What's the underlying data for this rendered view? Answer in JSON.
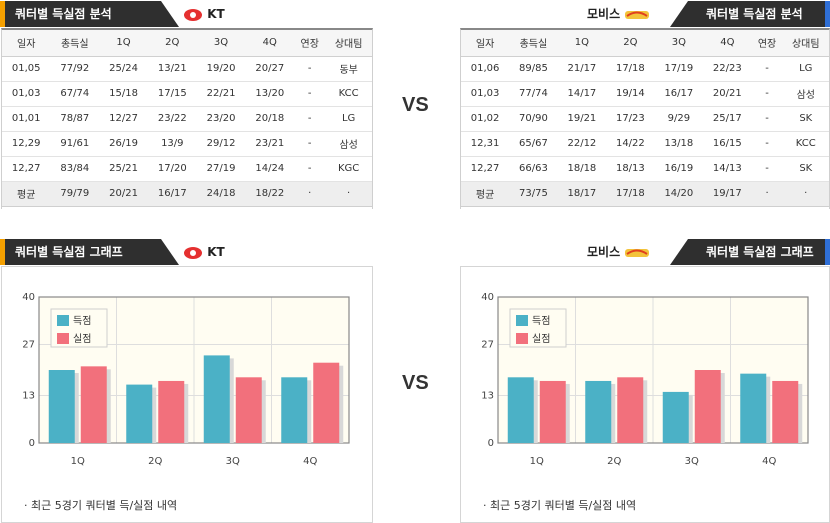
{
  "left": {
    "table_header": "쿼터별 득실점 분석",
    "graph_header": "쿼터별 득실점 그래프",
    "team_name": "KT",
    "columns": [
      "일자",
      "총득실",
      "1Q",
      "2Q",
      "3Q",
      "4Q",
      "연장",
      "상대팀"
    ],
    "rows": [
      [
        "01,05",
        "77/92",
        "25/24",
        "13/21",
        "19/20",
        "20/27",
        "-",
        "동부"
      ],
      [
        "01,03",
        "67/74",
        "15/18",
        "17/15",
        "22/21",
        "13/20",
        "-",
        "KCC"
      ],
      [
        "01,01",
        "78/87",
        "12/27",
        "23/22",
        "23/20",
        "20/18",
        "-",
        "LG"
      ],
      [
        "12,29",
        "91/61",
        "26/19",
        "13/9",
        "29/12",
        "23/21",
        "-",
        "삼성"
      ],
      [
        "12,27",
        "83/84",
        "25/21",
        "17/20",
        "27/19",
        "14/24",
        "-",
        "KGC"
      ]
    ],
    "avg_row": [
      "평균",
      "79/79",
      "20/21",
      "16/17",
      "24/18",
      "18/22",
      "·",
      "·"
    ],
    "note": "·  최근 5경기 쿼터별 득/실점 내역",
    "accent_color": "#f5a000"
  },
  "right": {
    "table_header": "쿼터별 득실점 분석",
    "graph_header": "쿼터별 득실점 그래프",
    "team_name": "모비스",
    "columns": [
      "일자",
      "총득실",
      "1Q",
      "2Q",
      "3Q",
      "4Q",
      "연장",
      "상대팀"
    ],
    "rows": [
      [
        "01,06",
        "89/85",
        "21/17",
        "17/18",
        "17/19",
        "22/23",
        "-",
        "LG"
      ],
      [
        "01,03",
        "77/74",
        "14/17",
        "19/14",
        "16/17",
        "20/21",
        "-",
        "삼성"
      ],
      [
        "01,02",
        "70/90",
        "19/21",
        "17/23",
        "9/29",
        "25/17",
        "-",
        "SK"
      ],
      [
        "12,31",
        "65/67",
        "22/12",
        "14/22",
        "13/18",
        "16/15",
        "-",
        "KCC"
      ],
      [
        "12,27",
        "66/63",
        "18/18",
        "18/13",
        "16/19",
        "14/13",
        "-",
        "SK"
      ]
    ],
    "avg_row": [
      "평균",
      "73/75",
      "18/17",
      "17/18",
      "14/20",
      "19/17",
      "·",
      "·"
    ],
    "note": "·  최근 5경기 쿼터별 득/실점 내역",
    "accent_color": "#2f6fd6"
  },
  "vs_label": "VS",
  "colors": {
    "scored": "#4bb1c6",
    "conceded": "#f2707c",
    "header_bg": "#2f2f2f"
  },
  "chart_data": [
    {
      "type": "bar",
      "categories": [
        "1Q",
        "2Q",
        "3Q",
        "4Q"
      ],
      "series": [
        {
          "name": "득점",
          "values": [
            20,
            16,
            24,
            18
          ]
        },
        {
          "name": "실점",
          "values": [
            21,
            17,
            18,
            22
          ]
        }
      ],
      "ylim": [
        0,
        40
      ],
      "yticks": [
        "0",
        "13",
        "27",
        "40"
      ],
      "legend": "top-left",
      "grid": true
    },
    {
      "type": "bar",
      "categories": [
        "1Q",
        "2Q",
        "3Q",
        "4Q"
      ],
      "series": [
        {
          "name": "득점",
          "values": [
            18,
            17,
            14,
            19
          ]
        },
        {
          "name": "실점",
          "values": [
            17,
            18,
            20,
            17
          ]
        }
      ],
      "ylim": [
        0,
        40
      ],
      "yticks": [
        "0",
        "13",
        "27",
        "40"
      ],
      "legend": "top-left",
      "grid": true
    }
  ]
}
